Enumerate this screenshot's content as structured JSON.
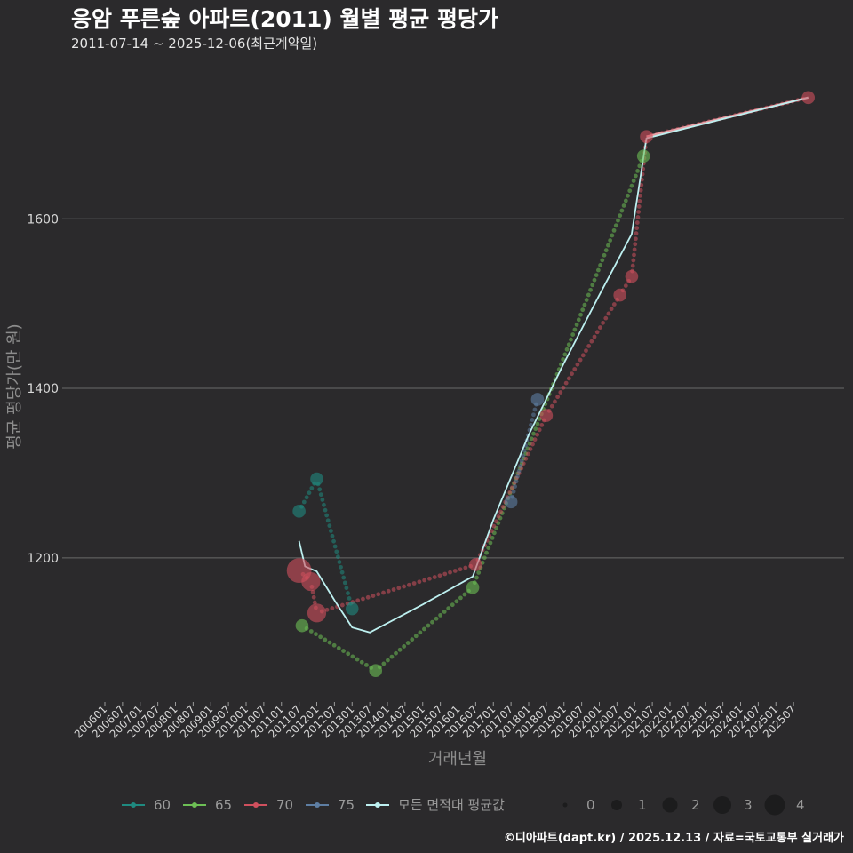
{
  "chart_data": {
    "type": "line",
    "title": "응암 푸른숲 아파트(2011) 월별 평균 평당가",
    "subtitle": "2011-07-14 ~ 2025-12-06(최근계약일)",
    "xlabel": "거래년월",
    "ylabel": "평균 평당가(만 원)",
    "caption": "©디아파트(dapt.kr) / 2025.12.13 / 자료=국토교통부 실거래가",
    "x_ticks": [
      "200601",
      "200607",
      "200701",
      "200707",
      "200801",
      "200807",
      "200901",
      "200907",
      "201001",
      "201007",
      "201101",
      "201107",
      "201201",
      "201207",
      "201301",
      "201307",
      "201401",
      "201407",
      "201501",
      "201507",
      "201601",
      "201607",
      "201701",
      "201707",
      "201801",
      "201807",
      "201901",
      "201907",
      "202001",
      "202007",
      "202101",
      "202107",
      "202201",
      "202207",
      "202301",
      "202307",
      "202401",
      "202407",
      "202501",
      "202507"
    ],
    "x_range": [
      "2006-01",
      "2026-01"
    ],
    "ylim": [
      1030,
      1790
    ],
    "y_ticks": [
      1200,
      1400,
      1600
    ],
    "series": [
      {
        "name": "60",
        "color": "#1f8a80",
        "points": [
          {
            "x": "2011-07",
            "y": 1255,
            "n": 1
          },
          {
            "x": "2012-01",
            "y": 1293,
            "n": 1
          },
          {
            "x": "2013-01",
            "y": 1140,
            "n": 1
          }
        ]
      },
      {
        "name": "65",
        "color": "#6dbf55",
        "points": [
          {
            "x": "2011-08",
            "y": 1120,
            "n": 1
          },
          {
            "x": "2013-09",
            "y": 1067,
            "n": 1
          },
          {
            "x": "2016-06",
            "y": 1165,
            "n": 1
          },
          {
            "x": "2021-04",
            "y": 1674,
            "n": 1
          }
        ]
      },
      {
        "name": "70",
        "color": "#d0505e",
        "points": [
          {
            "x": "2011-07",
            "y": 1185,
            "n": 3
          },
          {
            "x": "2011-11",
            "y": 1172,
            "n": 2
          },
          {
            "x": "2012-01",
            "y": 1135,
            "n": 2
          },
          {
            "x": "2016-07",
            "y": 1192,
            "n": 1
          },
          {
            "x": "2018-07",
            "y": 1368,
            "n": 1
          },
          {
            "x": "2020-08",
            "y": 1510,
            "n": 1
          },
          {
            "x": "2020-12",
            "y": 1532,
            "n": 1
          },
          {
            "x": "2021-05",
            "y": 1697,
            "n": 1
          },
          {
            "x": "2025-12",
            "y": 1743,
            "n": 1
          }
        ]
      },
      {
        "name": "75",
        "color": "#5e7ea3",
        "points": [
          {
            "x": "2017-07",
            "y": 1266,
            "n": 1
          },
          {
            "x": "2018-04",
            "y": 1387,
            "n": 1
          }
        ]
      }
    ],
    "average_series": {
      "name": "모든 면적대 평균값",
      "color": "#bdf0f0",
      "points": [
        {
          "x": "2011-07",
          "y": 1220
        },
        {
          "x": "2011-09",
          "y": 1190
        },
        {
          "x": "2012-01",
          "y": 1184
        },
        {
          "x": "2012-07",
          "y": 1150
        },
        {
          "x": "2013-01",
          "y": 1118
        },
        {
          "x": "2013-07",
          "y": 1112
        },
        {
          "x": "2014-01",
          "y": 1123
        },
        {
          "x": "2015-01",
          "y": 1145
        },
        {
          "x": "2016-06",
          "y": 1178
        },
        {
          "x": "2017-01",
          "y": 1245
        },
        {
          "x": "2018-01",
          "y": 1345
        },
        {
          "x": "2019-01",
          "y": 1430
        },
        {
          "x": "2020-01",
          "y": 1510
        },
        {
          "x": "2020-12",
          "y": 1582
        },
        {
          "x": "2021-05",
          "y": 1695
        },
        {
          "x": "2025-12",
          "y": 1743
        }
      ]
    },
    "size_legend": {
      "labels": [
        "0",
        "1",
        "2",
        "3",
        "4"
      ]
    }
  }
}
